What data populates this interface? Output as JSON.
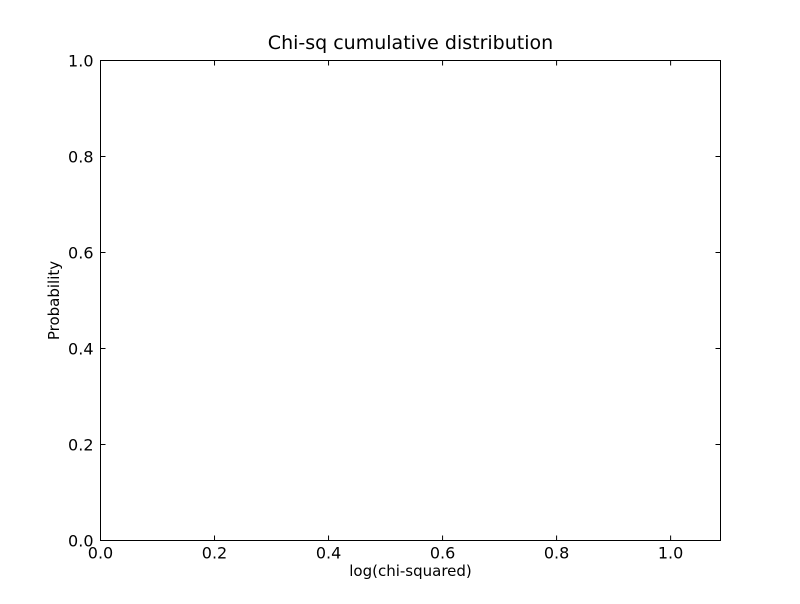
{
  "chart_data": {
    "type": "line",
    "title": "Chi-sq cumulative distribution",
    "xlabel": "log(chi-squared)",
    "ylabel": "Probability",
    "xlim": [
      0.0,
      1.0875
    ],
    "ylim": [
      0.0,
      1.0
    ],
    "xticks": [
      0.0,
      0.2,
      0.4,
      0.6,
      0.8,
      1.0
    ],
    "xtick_labels": [
      "0.0",
      "0.2",
      "0.4",
      "0.6",
      "0.8",
      "1.0"
    ],
    "yticks": [
      0.0,
      0.2,
      0.4,
      0.6,
      0.8,
      1.0
    ],
    "ytick_labels": [
      "0.0",
      "0.2",
      "0.4",
      "0.6",
      "0.8",
      "1.0"
    ],
    "grid": false,
    "series": []
  }
}
